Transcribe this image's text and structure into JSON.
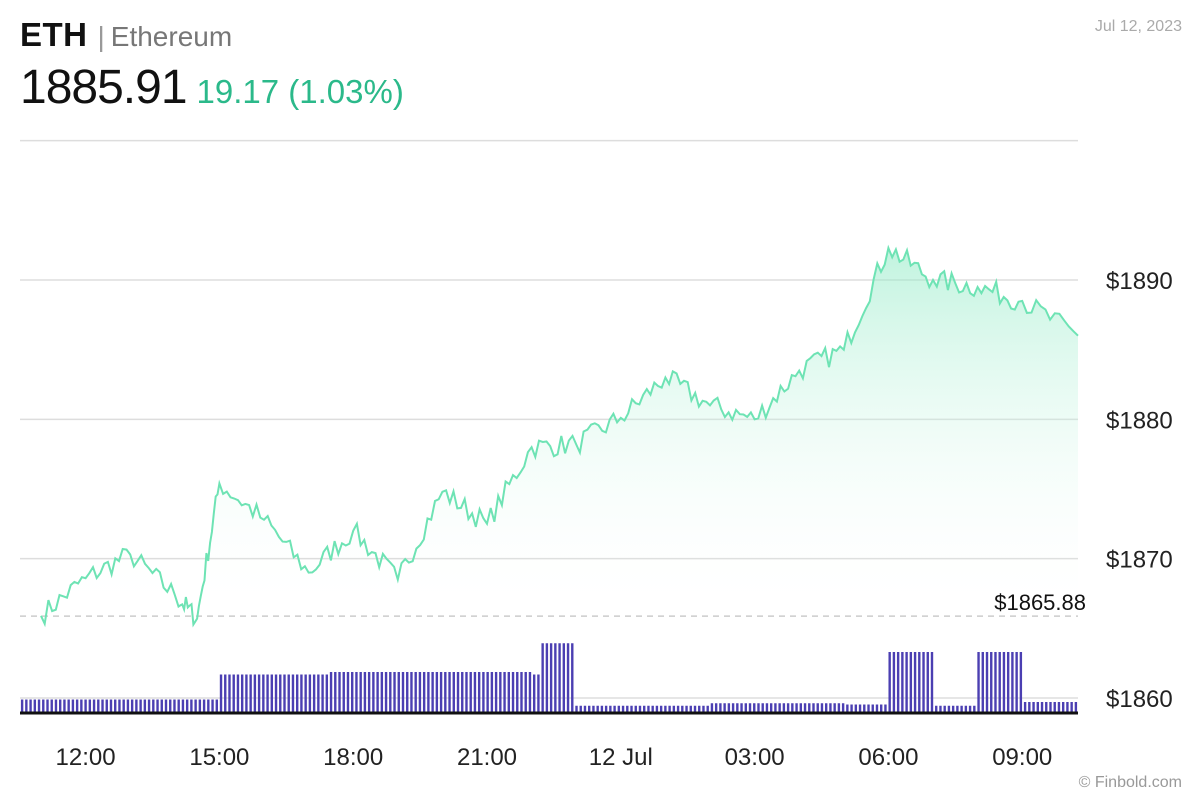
{
  "header": {
    "symbol": "ETH",
    "separator": "|",
    "name": "Ethereum",
    "price": "1885.91",
    "change": "19.17 (1.03%)",
    "date": "Jul 12, 2023"
  },
  "footer": {
    "credit": "© Finbold.com"
  },
  "colors": {
    "up_line": "#6ee3b4",
    "down_line": "#f05a5a",
    "area_fill": "#a8f0cf",
    "volume": "#4b3fb2",
    "grid": "#dddddd",
    "reference": "#cccccc"
  },
  "chart_data": {
    "type": "area",
    "reference": {
      "value": 1865.88,
      "label": "$1865.88"
    },
    "ylim": [
      1860,
      1900
    ],
    "yticks": [
      1860,
      1870,
      1880,
      1890
    ],
    "ytick_labels": [
      "$1860",
      "$1870",
      "$1880",
      "$1890"
    ],
    "x": [
      11.0,
      12.0,
      13.0,
      14.0,
      14.5,
      15.0,
      16.0,
      17.0,
      18.0,
      19.0,
      20.0,
      21.0,
      22.0,
      23.0,
      24.0,
      25.0,
      26.0,
      27.0,
      28.0,
      29.0,
      30.0,
      31.0,
      32.0,
      33.0,
      34.25
    ],
    "y": [
      1865.9,
      1868.6,
      1870.3,
      1867.4,
      1865.7,
      1875.4,
      1872.8,
      1869.0,
      1872.0,
      1868.5,
      1874.8,
      1872.5,
      1878.0,
      1878.2,
      1880.1,
      1883.0,
      1881.0,
      1880.0,
      1883.5,
      1885.0,
      1892.3,
      1890.0,
      1889.5,
      1888.5,
      1886.0
    ],
    "xtick_values": [
      12,
      15,
      18,
      21,
      24,
      27,
      30,
      33
    ],
    "xtick_labels": [
      "12:00",
      "15:00",
      "18:00",
      "21:00",
      "12 Jul",
      "03:00",
      "06:00",
      "09:00"
    ],
    "volume": {
      "x": [
        11.0,
        12.0,
        13.0,
        14.5,
        15.0,
        17.5,
        20.0,
        22.0,
        22.2,
        23.0,
        26.0,
        29.0,
        30.0,
        31.0,
        32.0,
        33.0,
        34.25
      ],
      "values": [
        1,
        1,
        1,
        1,
        3,
        3.2,
        3.2,
        3,
        5.5,
        0.5,
        0.7,
        0.6,
        4.8,
        0.5,
        4.8,
        0.8,
        4.8
      ]
    }
  }
}
